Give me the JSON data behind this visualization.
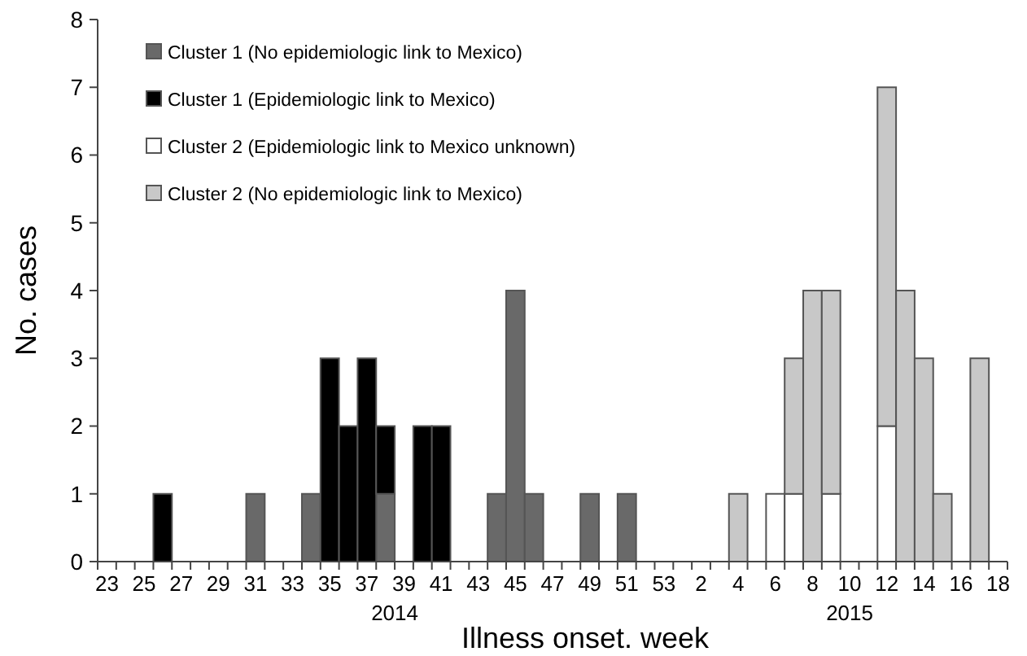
{
  "chart_data": {
    "type": "bar",
    "stacked": true,
    "xlabel": "Illness onset. week",
    "ylabel": "No. cases",
    "ylim": [
      0,
      8
    ],
    "yticks": [
      0,
      1,
      2,
      3,
      4,
      5,
      6,
      7,
      8
    ],
    "legend": "top left",
    "grid": false,
    "categories": [
      "23",
      null,
      "25",
      null,
      "27",
      null,
      "29",
      null,
      "31",
      null,
      "33",
      null,
      "35",
      null,
      "37",
      null,
      "39",
      null,
      "41",
      null,
      "43",
      null,
      "45",
      null,
      "47",
      null,
      "49",
      null,
      "51",
      null,
      "53",
      null,
      "2",
      null,
      "4",
      null,
      "6",
      null,
      "8",
      null,
      "10",
      null,
      "12",
      null,
      "14",
      null,
      "16",
      null,
      "18"
    ],
    "annotations": [
      "2014",
      "2015"
    ],
    "series": [
      {
        "name": "Cluster 1 (No epidemiologic link to Mexico)",
        "color": "#696969",
        "values": [
          0,
          0,
          0,
          0,
          0,
          0,
          0,
          0,
          1,
          0,
          0,
          1,
          0,
          0,
          0,
          1,
          0,
          0,
          0,
          0,
          0,
          1,
          4,
          1,
          0,
          0,
          1,
          0,
          1,
          0,
          0,
          0,
          0,
          0,
          0,
          0,
          0,
          0,
          0,
          0,
          0,
          0,
          0,
          0,
          0,
          0,
          0,
          0,
          0
        ]
      },
      {
        "name": "Cluster 1 (Epidemiologic link to Mexico)",
        "color": "#000000",
        "values": [
          0,
          0,
          0,
          1,
          0,
          0,
          0,
          0,
          0,
          0,
          0,
          0,
          3,
          2,
          3,
          1,
          0,
          2,
          2,
          0,
          0,
          0,
          0,
          0,
          0,
          0,
          0,
          0,
          0,
          0,
          0,
          0,
          0,
          0,
          0,
          0,
          0,
          0,
          0,
          0,
          0,
          0,
          0,
          0,
          0,
          0,
          0,
          0,
          0
        ]
      },
      {
        "name": "Cluster 2 (Epidemiologic link to Mexico unknown)",
        "color": "#ffffff",
        "values": [
          0,
          0,
          0,
          0,
          0,
          0,
          0,
          0,
          0,
          0,
          0,
          0,
          0,
          0,
          0,
          0,
          0,
          0,
          0,
          0,
          0,
          0,
          0,
          0,
          0,
          0,
          0,
          0,
          0,
          0,
          0,
          0,
          0,
          0,
          0,
          0,
          1,
          1,
          0,
          1,
          0,
          0,
          2,
          0,
          0,
          0,
          0,
          0,
          0
        ]
      },
      {
        "name": "Cluster 2 (No epidemiologic link to Mexico)",
        "color": "#c8c8c8",
        "values": [
          0,
          0,
          0,
          0,
          0,
          0,
          0,
          0,
          0,
          0,
          0,
          0,
          0,
          0,
          0,
          0,
          0,
          0,
          0,
          0,
          0,
          0,
          0,
          0,
          0,
          0,
          0,
          0,
          0,
          0,
          0,
          0,
          0,
          0,
          1,
          0,
          0,
          2,
          4,
          3,
          0,
          0,
          5,
          4,
          3,
          1,
          0,
          3,
          0
        ]
      }
    ]
  }
}
